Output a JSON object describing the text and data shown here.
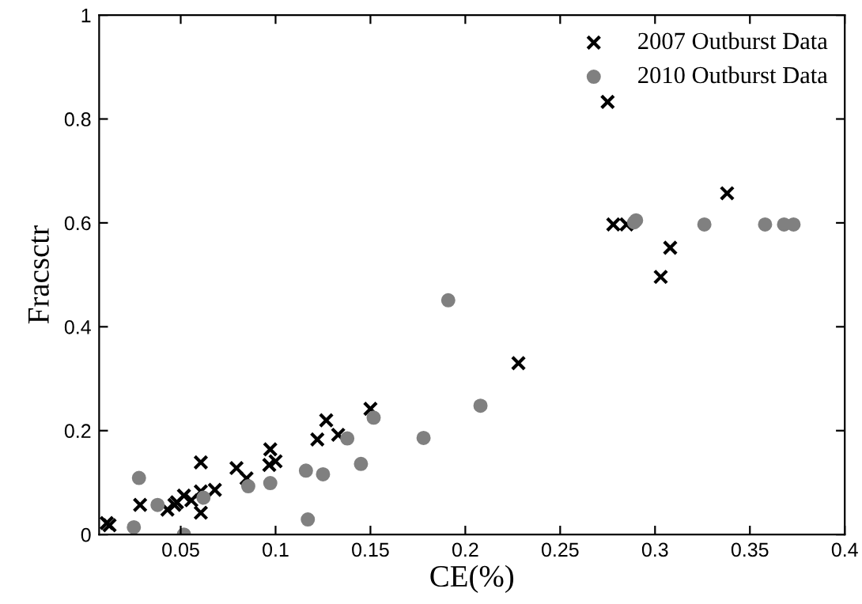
{
  "chart_data": {
    "type": "scatter",
    "xlabel": "CE(%)",
    "ylabel": "Fracsctr",
    "xlim": [
      0.007,
      0.4
    ],
    "ylim": [
      0,
      1
    ],
    "xticks": [
      0.05,
      0.1,
      0.15,
      0.2,
      0.25,
      0.3,
      0.35,
      0.4
    ],
    "yticks": [
      0,
      0.2,
      0.4,
      0.6,
      0.8,
      1
    ],
    "grid": false,
    "legend": "top right",
    "series": [
      {
        "name": "2007 Outburst Data",
        "color": "#000000",
        "marker": "cross",
        "x": [
          0.011,
          0.0125,
          0.0286,
          0.043,
          0.0467,
          0.048,
          0.0517,
          0.0556,
          0.0606,
          0.0606,
          0.0606,
          0.068,
          0.0794,
          0.0847,
          0.0972,
          0.0967,
          0.1,
          0.122,
          0.1267,
          0.133,
          0.15,
          0.228,
          0.275,
          0.278,
          0.285,
          0.303,
          0.308,
          0.338
        ],
        "values": [
          0.022,
          0.018,
          0.057,
          0.048,
          0.057,
          0.062,
          0.075,
          0.066,
          0.139,
          0.083,
          0.042,
          0.086,
          0.128,
          0.108,
          0.164,
          0.134,
          0.141,
          0.183,
          0.22,
          0.192,
          0.242,
          0.33,
          0.833,
          0.597,
          0.597,
          0.496,
          0.552,
          0.657
        ]
      },
      {
        "name": "2010 Outburst Data",
        "color": "#808080",
        "marker": "circle",
        "x": [
          0.0253,
          0.028,
          0.0378,
          0.0517,
          0.062,
          0.0856,
          0.0972,
          0.116,
          0.117,
          0.125,
          0.1378,
          0.145,
          0.1517,
          0.178,
          0.191,
          0.208,
          0.289,
          0.29,
          0.326,
          0.358,
          0.368,
          0.373
        ],
        "values": [
          0.014,
          0.109,
          0.057,
          0.0,
          0.071,
          0.093,
          0.099,
          0.123,
          0.029,
          0.116,
          0.185,
          0.136,
          0.225,
          0.186,
          0.451,
          0.248,
          0.601,
          0.605,
          0.597,
          0.597,
          0.597,
          0.597
        ]
      }
    ]
  }
}
